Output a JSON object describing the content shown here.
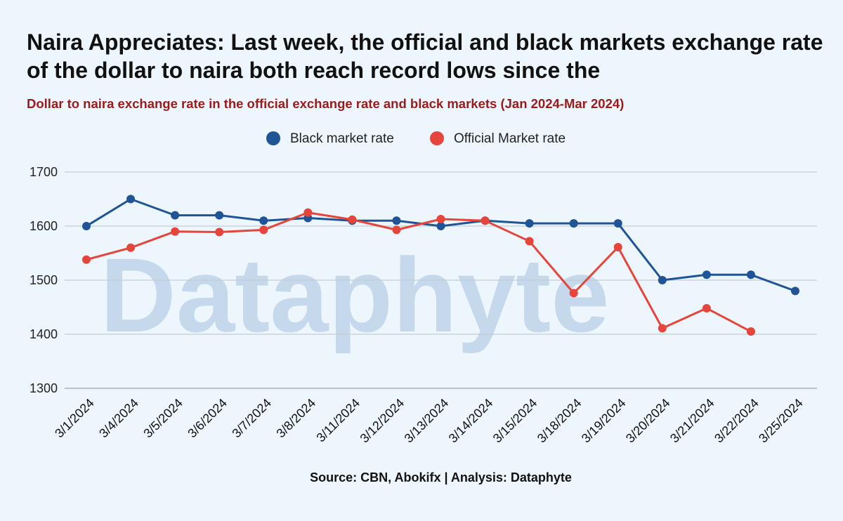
{
  "chart_data": {
    "type": "line",
    "title": "Naira Appreciates: Last week, the official and black markets exchange rate of the dollar to naira both reach record lows since the",
    "subtitle": "Dollar to naira exchange rate in the official  exchange rate and black markets (Jan 2024-Mar 2024)",
    "categories": [
      "3/1/2024",
      "3/4/2024",
      "3/5/2024",
      "3/6/2024",
      "3/7/2024",
      "3/8/2024",
      "3/11/2024",
      "3/12/2024",
      "3/13/2024",
      "3/14/2024",
      "3/15/2024",
      "3/18/2024",
      "3/19/2024",
      "3/20/2024",
      "3/21/2024",
      "3/22/2024",
      "3/25/2024"
    ],
    "series": [
      {
        "name": "Black market rate",
        "color": "#1f5497",
        "values": [
          1600,
          1650,
          1620,
          1620,
          1610,
          1615,
          1610,
          1610,
          1600,
          1610,
          1605,
          1605,
          1605,
          1500,
          1510,
          1510,
          1480
        ]
      },
      {
        "name": "Official Market rate",
        "color": "#e5453a",
        "values": [
          1538,
          1560,
          1590,
          1589,
          1593,
          1625,
          1612,
          1593,
          1613,
          1610,
          1572,
          1476,
          1561,
          1411,
          1448,
          1405,
          null
        ]
      }
    ],
    "yticks": [
      1300,
      1400,
      1500,
      1600,
      1700
    ],
    "ylim": [
      1300,
      1700
    ],
    "grid": true,
    "legend_position": "top-center",
    "xlabel": "",
    "ylabel": ""
  },
  "watermark": "Dataphyte",
  "source": "Source: CBN, Abokifx | Analysis: Dataphyte"
}
